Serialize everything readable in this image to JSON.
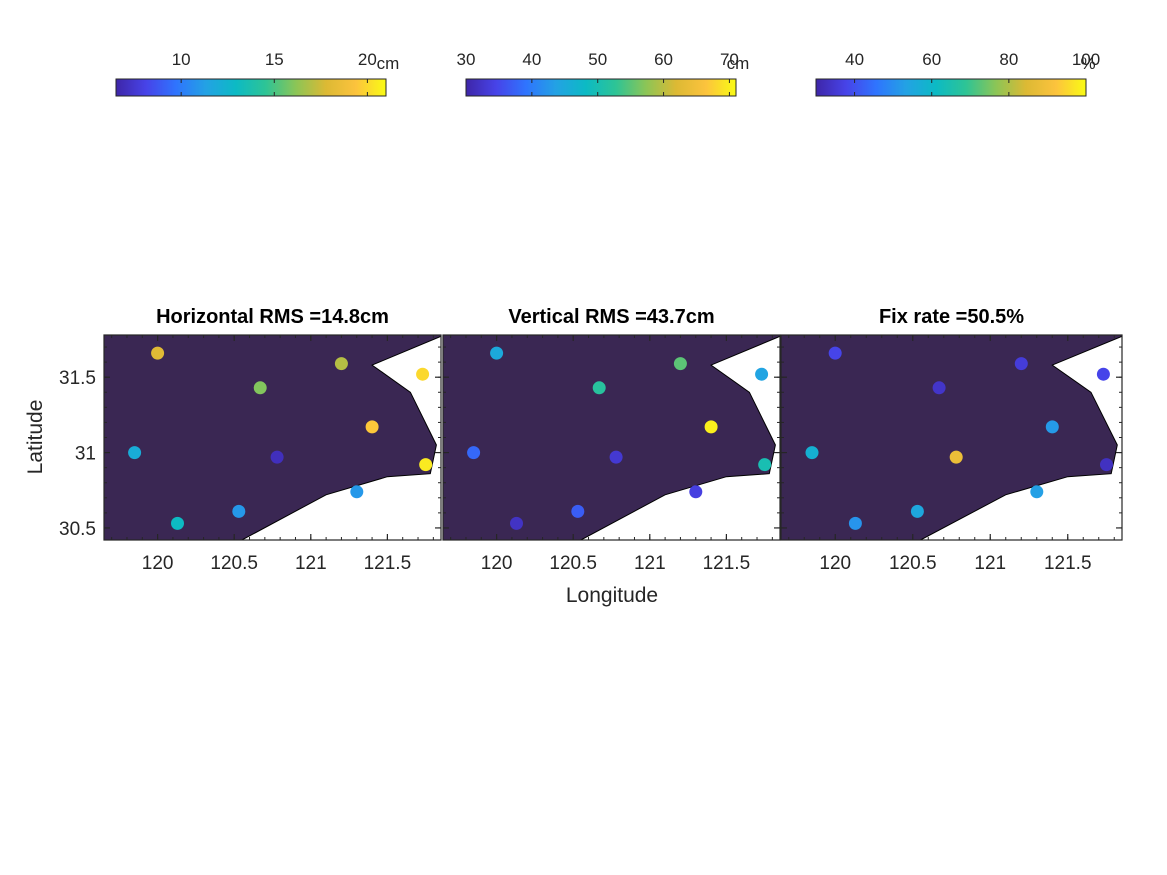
{
  "figure": {
    "xlabel": "Longitude",
    "ylabel": "Latitude"
  },
  "colormap": [
    "#3e26a8",
    "#4743e8",
    "#2f74fe",
    "#23a2e4",
    "#0cbac4",
    "#2ec495",
    "#8cc556",
    "#dcb934",
    "#fcc33d",
    "#f9fb14"
  ],
  "land_color": "#3a2753",
  "chart_data": [
    {
      "type": "scatter",
      "title": "Horizontal RMS =14.8cm",
      "xlim": [
        119.65,
        121.85
      ],
      "ylim": [
        30.42,
        31.78
      ],
      "xticks": [
        120,
        120.5,
        121,
        121.5
      ],
      "xtick_labels": [
        "120",
        "120.5",
        "121",
        "121.5"
      ],
      "yticks": [
        30.5,
        31,
        31.5
      ],
      "ytick_labels": [
        "30.5",
        "31",
        "31.5"
      ],
      "show_ytick_labels": true,
      "colorbar": {
        "clim": [
          6.5,
          21
        ],
        "ticks": [
          10,
          15,
          20
        ],
        "tick_labels": [
          "10",
          "15",
          "20"
        ],
        "unit": "cm"
      },
      "points": [
        {
          "lon": 120.0,
          "lat": 31.66,
          "value": 18.0
        },
        {
          "lon": 121.2,
          "lat": 31.59,
          "value": 17.0
        },
        {
          "lon": 121.73,
          "lat": 31.52,
          "value": 20.0
        },
        {
          "lon": 120.67,
          "lat": 31.43,
          "value": 16.0
        },
        {
          "lon": 121.4,
          "lat": 31.17,
          "value": 19.5
        },
        {
          "lon": 119.85,
          "lat": 31.0,
          "value": 12.0
        },
        {
          "lon": 120.78,
          "lat": 30.97,
          "value": 7.0
        },
        {
          "lon": 121.75,
          "lat": 30.92,
          "value": 20.5
        },
        {
          "lon": 121.3,
          "lat": 30.74,
          "value": 11.0
        },
        {
          "lon": 120.53,
          "lat": 30.61,
          "value": 11.0
        },
        {
          "lon": 120.13,
          "lat": 30.53,
          "value": 13.0
        }
      ]
    },
    {
      "type": "scatter",
      "title": "Vertical RMS =43.7cm",
      "xlim": [
        119.65,
        121.85
      ],
      "ylim": [
        30.42,
        31.78
      ],
      "xticks": [
        120,
        120.5,
        121,
        121.5
      ],
      "xtick_labels": [
        "120",
        "120.5",
        "121",
        "121.5"
      ],
      "yticks": [
        30.5,
        31,
        31.5
      ],
      "ytick_labels": [
        "30.5",
        "31",
        "31.5"
      ],
      "show_ytick_labels": false,
      "colorbar": {
        "clim": [
          30,
          71
        ],
        "ticks": [
          30,
          40,
          50,
          60,
          70
        ],
        "tick_labels": [
          "30",
          "40",
          "50",
          "60",
          "70"
        ],
        "unit": "cm"
      },
      "points": [
        {
          "lon": 120.0,
          "lat": 31.66,
          "value": 45.0
        },
        {
          "lon": 121.2,
          "lat": 31.59,
          "value": 55.0
        },
        {
          "lon": 121.73,
          "lat": 31.52,
          "value": 44.0
        },
        {
          "lon": 120.67,
          "lat": 31.43,
          "value": 52.0
        },
        {
          "lon": 121.4,
          "lat": 31.17,
          "value": 70.0
        },
        {
          "lon": 119.85,
          "lat": 31.0,
          "value": 38.0
        },
        {
          "lon": 120.78,
          "lat": 30.97,
          "value": 33.0
        },
        {
          "lon": 121.75,
          "lat": 30.92,
          "value": 50.0
        },
        {
          "lon": 121.3,
          "lat": 30.74,
          "value": 34.0
        },
        {
          "lon": 120.53,
          "lat": 30.61,
          "value": 37.0
        },
        {
          "lon": 120.13,
          "lat": 30.53,
          "value": 32.0
        }
      ]
    },
    {
      "type": "scatter",
      "title": "Fix rate =50.5%",
      "xlim": [
        119.65,
        121.85
      ],
      "ylim": [
        30.42,
        31.78
      ],
      "xticks": [
        120,
        120.5,
        121,
        121.5
      ],
      "xtick_labels": [
        "120",
        "120.5",
        "121",
        "121.5"
      ],
      "yticks": [
        30.5,
        31,
        31.5
      ],
      "ytick_labels": [
        "30.5",
        "31",
        "31.5"
      ],
      "show_ytick_labels": false,
      "colorbar": {
        "clim": [
          30,
          100
        ],
        "ticks": [
          40,
          60,
          80,
          100
        ],
        "tick_labels": [
          "40",
          "60",
          "80",
          "100"
        ],
        "unit": "%"
      },
      "points": [
        {
          "lon": 120.0,
          "lat": 31.66,
          "value": 38.0
        },
        {
          "lon": 121.2,
          "lat": 31.59,
          "value": 36.0
        },
        {
          "lon": 121.73,
          "lat": 31.52,
          "value": 38.0
        },
        {
          "lon": 120.67,
          "lat": 31.43,
          "value": 34.0
        },
        {
          "lon": 121.4,
          "lat": 31.17,
          "value": 52.0
        },
        {
          "lon": 119.85,
          "lat": 31.0,
          "value": 58.0
        },
        {
          "lon": 120.78,
          "lat": 30.97,
          "value": 88.0
        },
        {
          "lon": 121.75,
          "lat": 30.92,
          "value": 33.0
        },
        {
          "lon": 121.3,
          "lat": 30.74,
          "value": 53.0
        },
        {
          "lon": 120.53,
          "lat": 30.61,
          "value": 55.0
        },
        {
          "lon": 120.13,
          "lat": 30.53,
          "value": 51.0
        }
      ]
    }
  ]
}
